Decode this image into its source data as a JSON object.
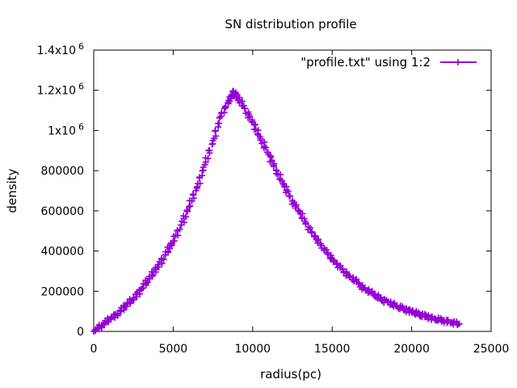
{
  "chart_data": {
    "type": "scatter",
    "title": "SN distribution profile",
    "xlabel": "radius(pc)",
    "ylabel": "density",
    "xlim": [
      0,
      25000
    ],
    "ylim": [
      0,
      1400000
    ],
    "grid": false,
    "legend_position": "top-right",
    "x_ticks": [
      {
        "value": 0,
        "label": "0"
      },
      {
        "value": 5000,
        "label": "5000"
      },
      {
        "value": 10000,
        "label": "10000"
      },
      {
        "value": 15000,
        "label": "15000"
      },
      {
        "value": 20000,
        "label": "20000"
      },
      {
        "value": 25000,
        "label": "25000"
      }
    ],
    "y_ticks": [
      {
        "value": 0,
        "label": "0"
      },
      {
        "value": 200000,
        "label": "200000"
      },
      {
        "value": 400000,
        "label": "400000"
      },
      {
        "value": 600000,
        "label": "600000"
      },
      {
        "value": 800000,
        "label": "800000"
      },
      {
        "value": 1000000,
        "label": "1x10",
        "exponent": "6"
      },
      {
        "value": 1200000,
        "label": "1.2x10",
        "exponent": "6"
      },
      {
        "value": 1400000,
        "label": "1.4x10",
        "exponent": "6"
      }
    ],
    "series": [
      {
        "name": "\"profile.txt\" using 1:2",
        "color": "#9400D3",
        "marker": "plus",
        "x": [
          0,
          500,
          1000,
          1500,
          2000,
          2500,
          3000,
          3500,
          4000,
          4500,
          5000,
          5500,
          6000,
          6500,
          7000,
          7500,
          8000,
          8500,
          8800,
          9000,
          9500,
          10000,
          10500,
          11000,
          11500,
          12000,
          12500,
          13000,
          13500,
          14000,
          14500,
          15000,
          15500,
          16000,
          16500,
          17000,
          17500,
          18000,
          18500,
          19000,
          19500,
          20000,
          20500,
          21000,
          21500,
          22000,
          22500,
          23000
        ],
        "y": [
          0,
          30000,
          60000,
          90000,
          125000,
          165000,
          210000,
          265000,
          320000,
          380000,
          450000,
          530000,
          620000,
          720000,
          830000,
          950000,
          1070000,
          1150000,
          1190000,
          1170000,
          1110000,
          1040000,
          960000,
          880000,
          800000,
          720000,
          650000,
          585000,
          520000,
          460000,
          410000,
          360000,
          318000,
          280000,
          248000,
          215000,
          190000,
          165000,
          145000,
          128000,
          112000,
          98000,
          85000,
          72000,
          62000,
          53000,
          45000,
          38000
        ]
      }
    ]
  }
}
